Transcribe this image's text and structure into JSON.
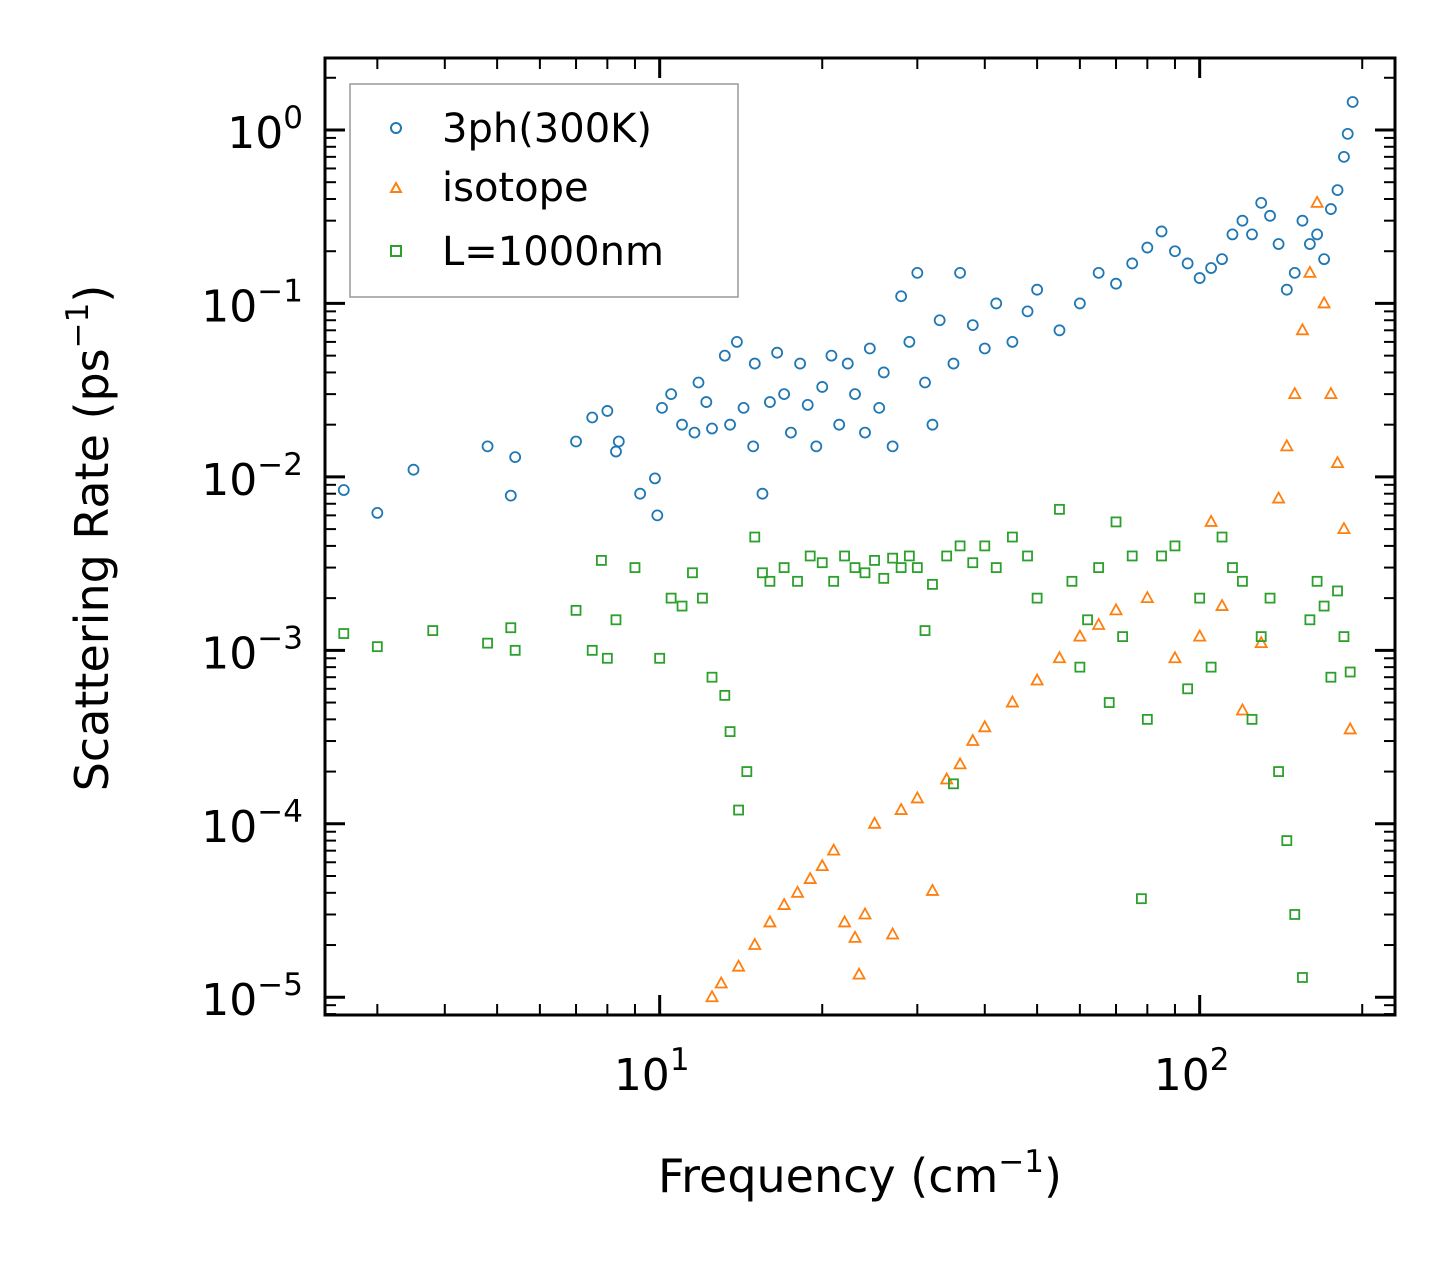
{
  "chart_data": {
    "type": "scatter",
    "title": "",
    "xlabel": "Frequency (cm",
    "xlabel_sup": "−1",
    "xlabel_end": ")",
    "ylabel": "Scattering Rate (ps",
    "ylabel_sup": "−1",
    "ylabel_end": ")",
    "xscale": "log",
    "yscale": "log",
    "xlim": [
      2.4,
      230
    ],
    "ylim": [
      7.9e-06,
      2.6
    ],
    "x_ticks": [
      {
        "base": "10",
        "exp": "1",
        "value": 10
      },
      {
        "base": "10",
        "exp": "2",
        "value": 100
      }
    ],
    "y_ticks": [
      {
        "base": "10",
        "exp": "0",
        "value": 1
      },
      {
        "base": "10",
        "exp": "−1",
        "value": 0.1
      },
      {
        "base": "10",
        "exp": "−2",
        "value": 0.01
      },
      {
        "base": "10",
        "exp": "−3",
        "value": 0.001
      },
      {
        "base": "10",
        "exp": "−4",
        "value": 0.0001
      },
      {
        "base": "10",
        "exp": "−5",
        "value": 1e-05
      }
    ],
    "legend_position": "top-left",
    "series": [
      {
        "name": "3ph(300K)",
        "marker": "circle",
        "color": "#1f77b4",
        "points": [
          [
            2.6,
            0.0084
          ],
          [
            3.0,
            0.0062
          ],
          [
            3.5,
            0.011
          ],
          [
            4.8,
            0.015
          ],
          [
            5.3,
            0.0078
          ],
          [
            5.4,
            0.013
          ],
          [
            7.0,
            0.016
          ],
          [
            7.5,
            0.022
          ],
          [
            8.0,
            0.024
          ],
          [
            8.3,
            0.014
          ],
          [
            8.4,
            0.016
          ],
          [
            9.2,
            0.008
          ],
          [
            9.8,
            0.0098
          ],
          [
            9.9,
            0.006
          ],
          [
            10.1,
            0.025
          ],
          [
            10.5,
            0.03
          ],
          [
            11.0,
            0.02
          ],
          [
            11.6,
            0.018
          ],
          [
            11.8,
            0.035
          ],
          [
            12.2,
            0.027
          ],
          [
            12.5,
            0.019
          ],
          [
            13.2,
            0.05
          ],
          [
            13.5,
            0.02
          ],
          [
            13.9,
            0.06
          ],
          [
            14.3,
            0.025
          ],
          [
            14.9,
            0.015
          ],
          [
            15.0,
            0.045
          ],
          [
            15.5,
            0.008
          ],
          [
            16.0,
            0.027
          ],
          [
            16.5,
            0.052
          ],
          [
            17.0,
            0.03
          ],
          [
            17.5,
            0.018
          ],
          [
            18.2,
            0.045
          ],
          [
            18.8,
            0.026
          ],
          [
            19.5,
            0.015
          ],
          [
            20.0,
            0.033
          ],
          [
            20.8,
            0.05
          ],
          [
            21.5,
            0.02
          ],
          [
            22.3,
            0.045
          ],
          [
            23.0,
            0.03
          ],
          [
            24.0,
            0.018
          ],
          [
            24.5,
            0.055
          ],
          [
            25.5,
            0.025
          ],
          [
            26.0,
            0.04
          ],
          [
            27.0,
            0.015
          ],
          [
            28.0,
            0.11
          ],
          [
            29.0,
            0.06
          ],
          [
            30.0,
            0.15
          ],
          [
            31.0,
            0.035
          ],
          [
            32.0,
            0.02
          ],
          [
            33.0,
            0.08
          ],
          [
            35.0,
            0.045
          ],
          [
            36.0,
            0.15
          ],
          [
            38.0,
            0.075
          ],
          [
            40.0,
            0.055
          ],
          [
            42.0,
            0.1
          ],
          [
            45.0,
            0.06
          ],
          [
            48.0,
            0.09
          ],
          [
            50.0,
            0.12
          ],
          [
            55.0,
            0.07
          ],
          [
            60.0,
            0.1
          ],
          [
            65.0,
            0.15
          ],
          [
            70.0,
            0.13
          ],
          [
            75.0,
            0.17
          ],
          [
            80.0,
            0.21
          ],
          [
            85.0,
            0.26
          ],
          [
            90.0,
            0.2
          ],
          [
            95.0,
            0.17
          ],
          [
            100.0,
            0.14
          ],
          [
            105.0,
            0.16
          ],
          [
            110.0,
            0.18
          ],
          [
            115.0,
            0.25
          ],
          [
            120.0,
            0.3
          ],
          [
            125.0,
            0.25
          ],
          [
            130.0,
            0.38
          ],
          [
            135.0,
            0.32
          ],
          [
            140.0,
            0.22
          ],
          [
            145.0,
            0.12
          ],
          [
            150.0,
            0.15
          ],
          [
            155.0,
            0.3
          ],
          [
            160.0,
            0.22
          ],
          [
            165.0,
            0.25
          ],
          [
            170.0,
            0.18
          ],
          [
            175.0,
            0.35
          ],
          [
            180.0,
            0.45
          ],
          [
            185.0,
            0.7
          ],
          [
            188.0,
            0.95
          ],
          [
            192.0,
            1.45
          ]
        ]
      },
      {
        "name": "isotope",
        "marker": "triangle",
        "color": "#ff7f0e",
        "points": [
          [
            12.5,
            1e-05
          ],
          [
            13.0,
            1.2e-05
          ],
          [
            14.0,
            1.5e-05
          ],
          [
            15.0,
            2e-05
          ],
          [
            16.0,
            2.7e-05
          ],
          [
            17.0,
            3.4e-05
          ],
          [
            18.0,
            4e-05
          ],
          [
            19.0,
            4.8e-05
          ],
          [
            20.0,
            5.7e-05
          ],
          [
            21.0,
            7e-05
          ],
          [
            22.0,
            2.7e-05
          ],
          [
            23.0,
            2.2e-05
          ],
          [
            23.4,
            1.35e-05
          ],
          [
            24.0,
            3e-05
          ],
          [
            25.0,
            0.0001
          ],
          [
            27.0,
            2.3e-05
          ],
          [
            28.0,
            0.00012
          ],
          [
            30.0,
            0.00014
          ],
          [
            32.0,
            4.1e-05
          ],
          [
            34.0,
            0.00018
          ],
          [
            36.0,
            0.00022
          ],
          [
            38.0,
            0.0003
          ],
          [
            40.0,
            0.00036
          ],
          [
            45.0,
            0.0005
          ],
          [
            50.0,
            0.00067
          ],
          [
            55.0,
            0.0009
          ],
          [
            60.0,
            0.0012
          ],
          [
            65.0,
            0.0014
          ],
          [
            70.0,
            0.0017
          ],
          [
            80.0,
            0.002
          ],
          [
            90.0,
            0.0009
          ],
          [
            100.0,
            0.0012
          ],
          [
            105.0,
            0.0055
          ],
          [
            110.0,
            0.0018
          ],
          [
            120.0,
            0.00045
          ],
          [
            130.0,
            0.0011
          ],
          [
            140.0,
            0.0075
          ],
          [
            145.0,
            0.015
          ],
          [
            150.0,
            0.03
          ],
          [
            155.0,
            0.07
          ],
          [
            160.0,
            0.15
          ],
          [
            165.0,
            0.38
          ],
          [
            170.0,
            0.1
          ],
          [
            175.0,
            0.03
          ],
          [
            180.0,
            0.012
          ],
          [
            185.0,
            0.005
          ],
          [
            190.0,
            0.00035
          ]
        ]
      },
      {
        "name": "L=1000nm",
        "marker": "square",
        "color": "#2ca02c",
        "points": [
          [
            2.6,
            0.00125
          ],
          [
            3.0,
            0.00105
          ],
          [
            3.8,
            0.0013
          ],
          [
            4.8,
            0.0011
          ],
          [
            5.3,
            0.00135
          ],
          [
            5.4,
            0.001
          ],
          [
            7.0,
            0.0017
          ],
          [
            7.5,
            0.001
          ],
          [
            7.8,
            0.0033
          ],
          [
            8.0,
            0.0009
          ],
          [
            8.3,
            0.0015
          ],
          [
            9.0,
            0.003
          ],
          [
            10.0,
            0.0009
          ],
          [
            10.5,
            0.002
          ],
          [
            11.0,
            0.0018
          ],
          [
            11.5,
            0.0028
          ],
          [
            12.0,
            0.002
          ],
          [
            12.5,
            0.0007
          ],
          [
            13.2,
            0.00055
          ],
          [
            13.5,
            0.00034
          ],
          [
            14.0,
            0.00012
          ],
          [
            14.5,
            0.0002
          ],
          [
            15.0,
            0.0045
          ],
          [
            15.5,
            0.0028
          ],
          [
            16.0,
            0.0025
          ],
          [
            17.0,
            0.003
          ],
          [
            18.0,
            0.0025
          ],
          [
            19.0,
            0.0035
          ],
          [
            20.0,
            0.0032
          ],
          [
            21.0,
            0.0025
          ],
          [
            22.0,
            0.0035
          ],
          [
            23.0,
            0.003
          ],
          [
            24.0,
            0.0028
          ],
          [
            25.0,
            0.0033
          ],
          [
            26.0,
            0.0026
          ],
          [
            27.0,
            0.0034
          ],
          [
            28.0,
            0.003
          ],
          [
            29.0,
            0.0035
          ],
          [
            30.0,
            0.003
          ],
          [
            31.0,
            0.0013
          ],
          [
            32.0,
            0.0024
          ],
          [
            34.0,
            0.0035
          ],
          [
            35.0,
            0.00017
          ],
          [
            36.0,
            0.004
          ],
          [
            38.0,
            0.0032
          ],
          [
            40.0,
            0.004
          ],
          [
            42.0,
            0.003
          ],
          [
            45.0,
            0.0045
          ],
          [
            48.0,
            0.0035
          ],
          [
            50.0,
            0.002
          ],
          [
            55.0,
            0.0065
          ],
          [
            58.0,
            0.0025
          ],
          [
            60.0,
            0.0008
          ],
          [
            62.0,
            0.0015
          ],
          [
            65.0,
            0.003
          ],
          [
            68.0,
            0.0005
          ],
          [
            70.0,
            0.0055
          ],
          [
            72.0,
            0.0012
          ],
          [
            75.0,
            0.0035
          ],
          [
            78.0,
            3.7e-05
          ],
          [
            80.0,
            0.0004
          ],
          [
            85.0,
            0.0035
          ],
          [
            90.0,
            0.004
          ],
          [
            95.0,
            0.0006
          ],
          [
            100.0,
            0.002
          ],
          [
            105.0,
            0.0008
          ],
          [
            110.0,
            0.0045
          ],
          [
            115.0,
            0.003
          ],
          [
            120.0,
            0.0025
          ],
          [
            125.0,
            0.0004
          ],
          [
            130.0,
            0.0012
          ],
          [
            135.0,
            0.002
          ],
          [
            140.0,
            0.0002
          ],
          [
            145.0,
            8e-05
          ],
          [
            150.0,
            3e-05
          ],
          [
            155.0,
            1.3e-05
          ],
          [
            160.0,
            0.0015
          ],
          [
            165.0,
            0.0025
          ],
          [
            170.0,
            0.0018
          ],
          [
            175.0,
            0.0007
          ],
          [
            180.0,
            0.0022
          ],
          [
            185.0,
            0.0012
          ],
          [
            190.0,
            0.00075
          ]
        ]
      }
    ]
  }
}
